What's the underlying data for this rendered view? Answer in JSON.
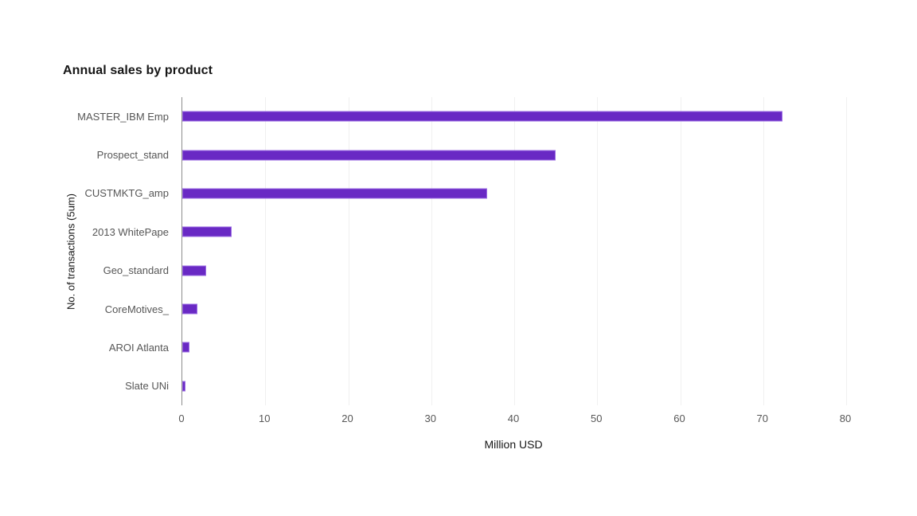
{
  "title": "Annual sales by product",
  "chart_data": {
    "type": "bar",
    "orientation": "horizontal",
    "title": "Annual sales by product",
    "categories": [
      "MASTER_IBM Emp",
      "Prospect_stand",
      "CUSTMKTG_amp",
      "2013 WhitePape",
      "Geo_standard",
      "CoreMotives_",
      "AROI Atlanta",
      "Slate UNi"
    ],
    "values": [
      72.3,
      45.0,
      36.7,
      5.9,
      2.9,
      1.8,
      0.9,
      0.4
    ],
    "xlabel": "Million USD",
    "ylabel": "No. of transactions (5um)",
    "xlim": [
      0,
      80
    ],
    "xticks": [
      0,
      10,
      20,
      30,
      40,
      50,
      60,
      70,
      80
    ],
    "grid": "vertical",
    "legend": "none",
    "colors": {
      "bar_fill": "#6929c4",
      "bar_border": "#9b6ce3",
      "axis_line": "#8d8d8d",
      "gridline": "#f0f0f0",
      "tick_label": "#565656",
      "category_label": "#565656",
      "axis_title": "#161616",
      "title": "#161616"
    }
  }
}
